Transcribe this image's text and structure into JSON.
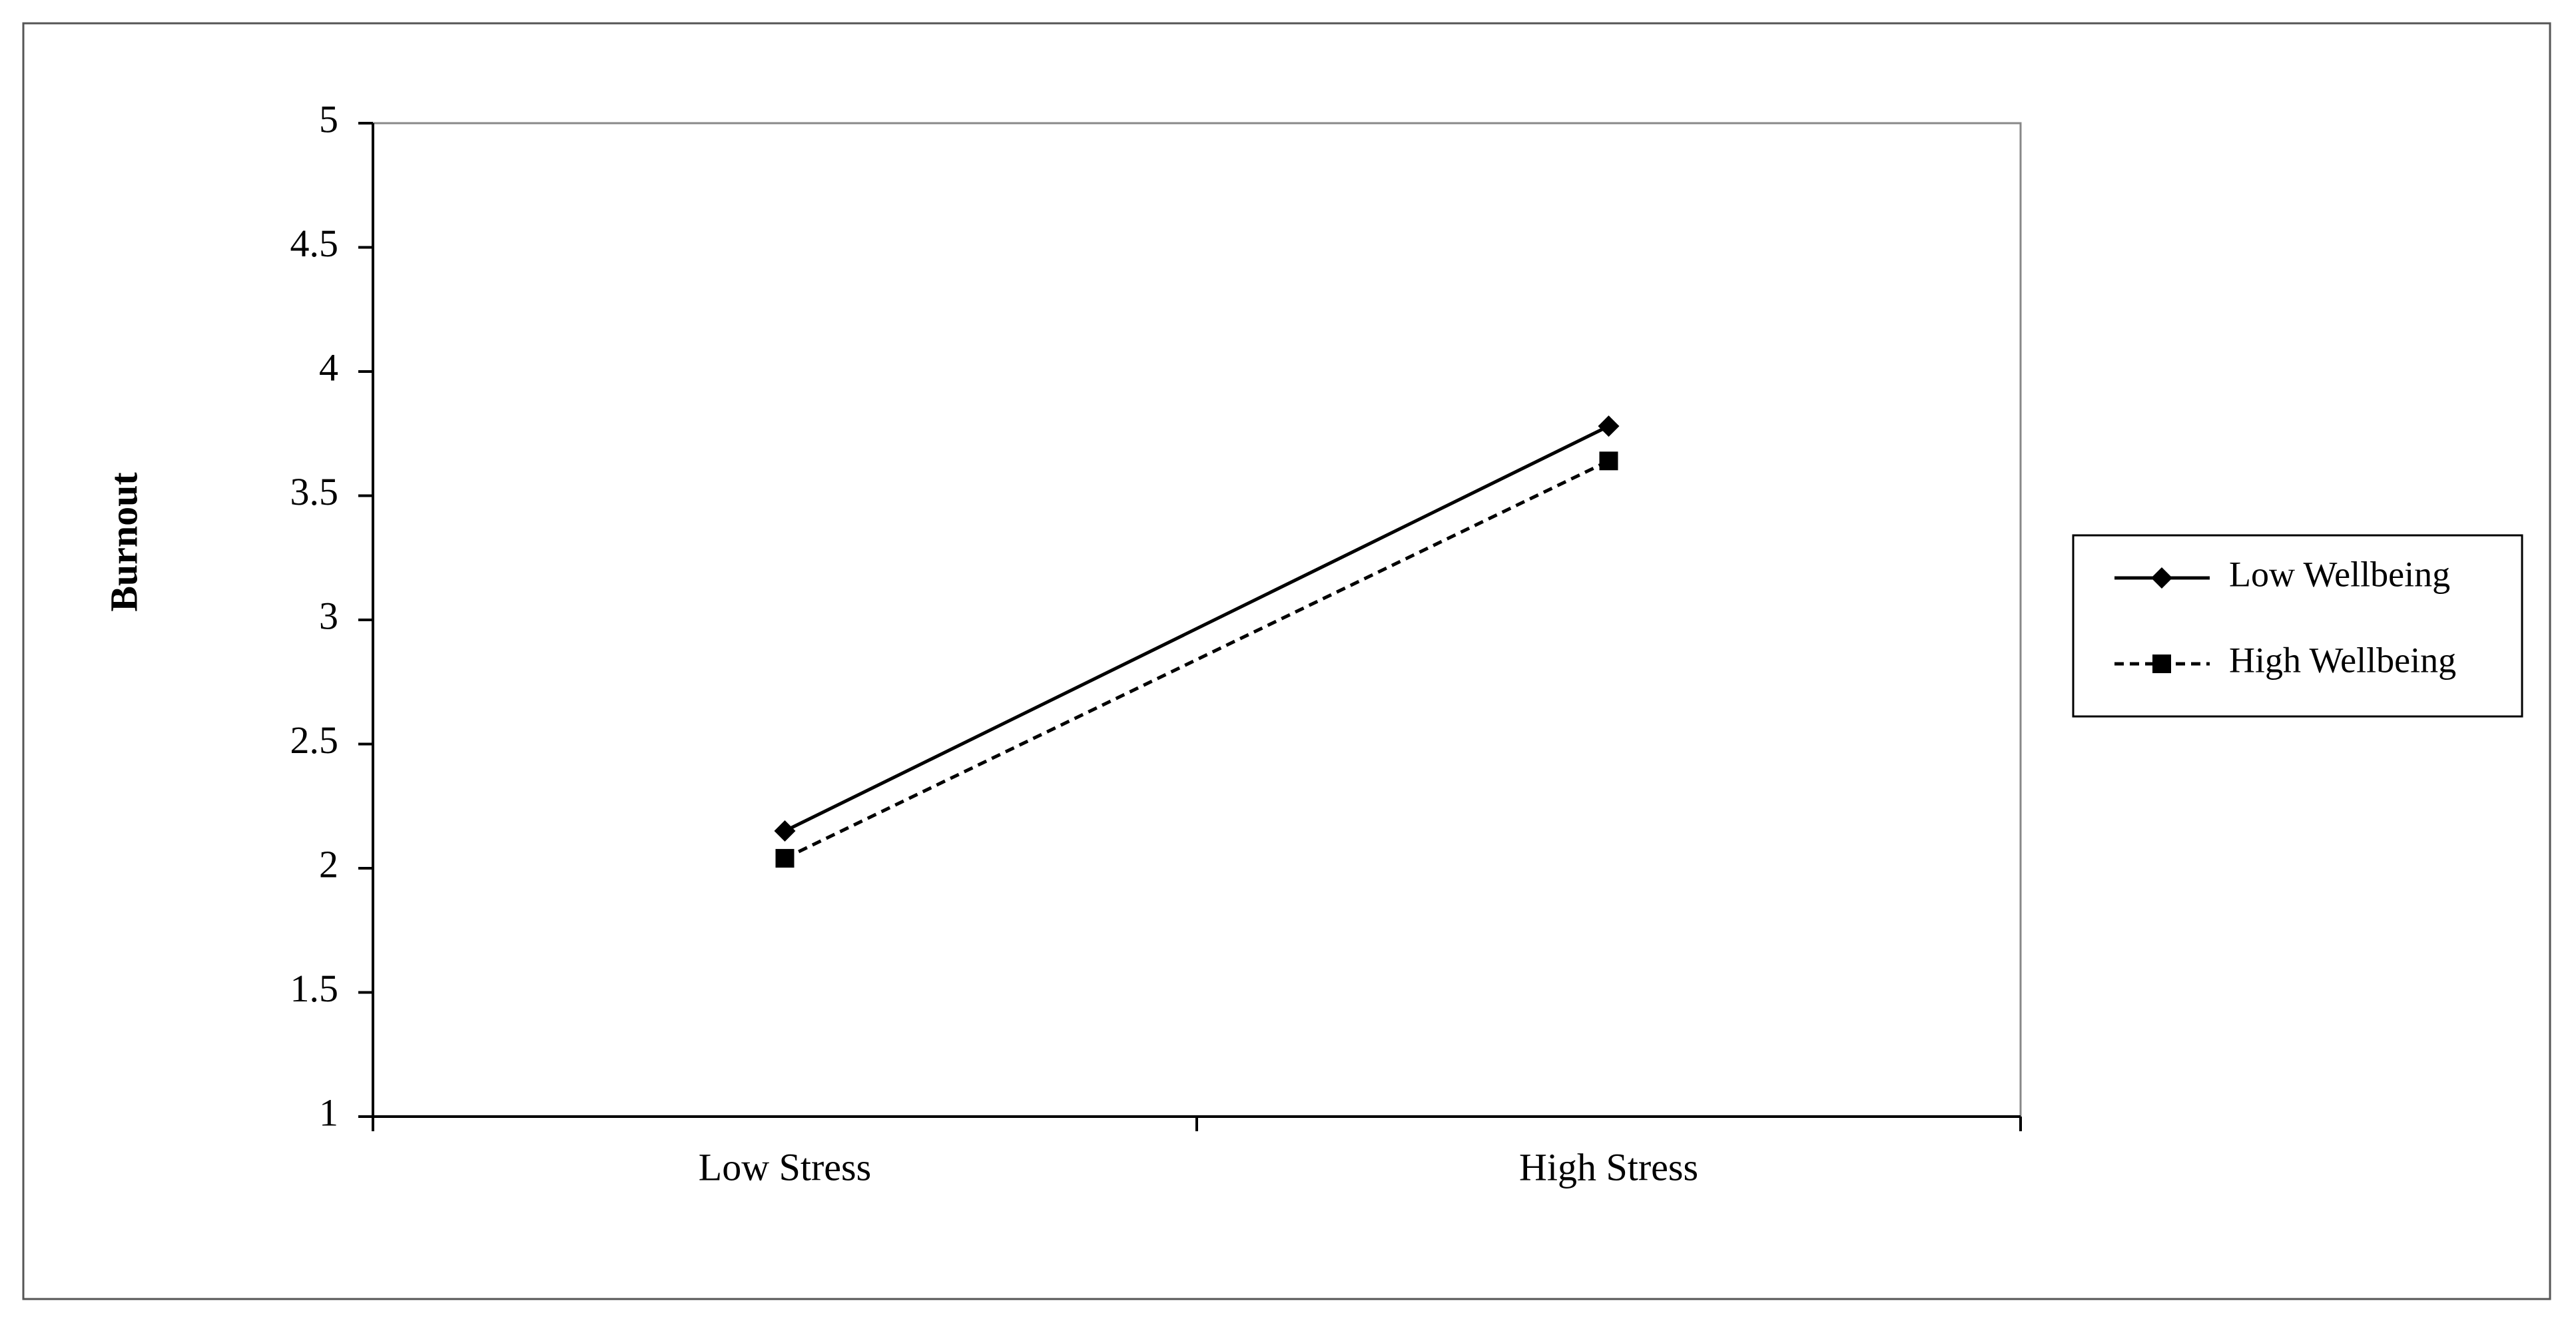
{
  "chart_data": {
    "type": "line",
    "y_label": "Burnout",
    "categories": [
      "Low Stress",
      "High Stress"
    ],
    "series": [
      {
        "name": "Low Wellbeing",
        "color": "#000000",
        "dash": "solid",
        "marker": "diamond",
        "values": [
          2.15,
          3.78
        ]
      },
      {
        "name": "High Wellbeing",
        "color": "#000000",
        "dash": "dashed",
        "marker": "square",
        "values": [
          2.04,
          3.64
        ]
      }
    ],
    "ylim": [
      1,
      5
    ],
    "yticks": [
      1,
      1.5,
      2,
      2.5,
      3,
      3.5,
      4,
      4.5,
      5
    ],
    "grid": false,
    "legend": "right"
  }
}
